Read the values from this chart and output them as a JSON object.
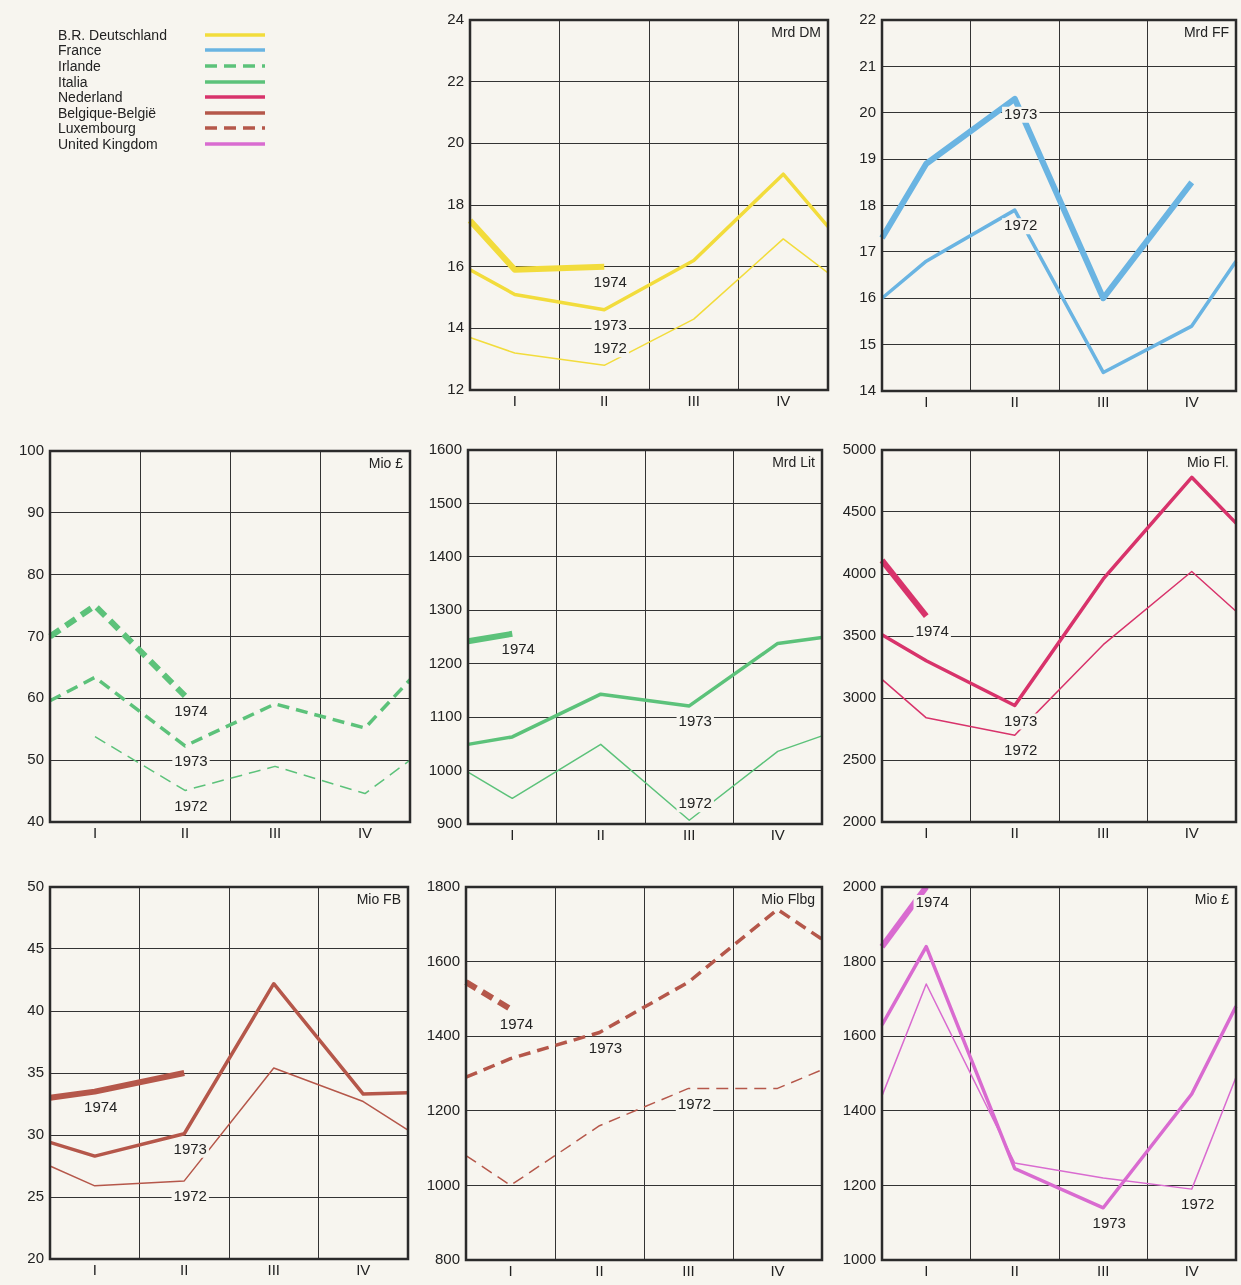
{
  "chart_data": [
    {
      "type": "line",
      "legend_title": "B.R. Deutschland",
      "ylabel": "Mrd DM",
      "categories": [
        null,
        "I",
        null,
        "II",
        null,
        "III",
        null,
        "IV",
        null
      ],
      "ylim": [
        12,
        24
      ],
      "yticks": [
        12,
        14,
        16,
        18,
        20,
        22,
        24
      ],
      "grid": true,
      "line_style": "solid",
      "series": [
        {
          "color": "#f2dc3c",
          "values": [
            13.7,
            13.2,
            null,
            12.8,
            null,
            14.3,
            null,
            16.9,
            15.8
          ]
        },
        {
          "color": "#f2dc3c",
          "values": [
            15.9,
            15.1,
            null,
            14.6,
            null,
            16.2,
            null,
            19.0,
            17.3
          ]
        },
        {
          "color": "#f2dc3c",
          "values": [
            17.5,
            15.9,
            null,
            16.0,
            null,
            null,
            null,
            null,
            null
          ]
        }
      ],
      "annotations": [
        {
          "text": "1974",
          "x": "II",
          "y": 16.0
        },
        {
          "text": "1973",
          "x": "II",
          "y": 14.6
        },
        {
          "text": "1972",
          "x": "II",
          "y": 12.8
        }
      ]
    },
    {
      "type": "line",
      "legend_title": "France",
      "ylabel": "Mrd FF",
      "categories": [
        null,
        "I",
        null,
        "II",
        null,
        "III",
        null,
        "IV",
        null
      ],
      "ylim": [
        14,
        22
      ],
      "yticks": [
        14,
        15,
        16,
        17,
        18,
        19,
        20,
        21,
        22
      ],
      "grid": true,
      "line_style": "solid",
      "series": [
        {
          "color": "#6ab4e2",
          "values": [
            16.0,
            16.8,
            null,
            17.9,
            null,
            14.4,
            null,
            15.4,
            16.8
          ]
        },
        {
          "color": "#6ab4e2",
          "values": [
            17.3,
            18.9,
            null,
            20.3,
            null,
            16.0,
            null,
            18.5,
            null
          ]
        }
      ],
      "annotations": [
        {
          "text": "1973",
          "x": "II",
          "y": 20.3
        },
        {
          "text": "1972",
          "x": "II",
          "y": 17.9
        }
      ]
    },
    {
      "type": "line",
      "legend_title": "Irlande",
      "ylabel": "Mio £",
      "categories": [
        null,
        "I",
        null,
        "II",
        null,
        "III",
        null,
        "IV",
        null
      ],
      "ylim": [
        40,
        100
      ],
      "yticks": [
        40,
        50,
        60,
        70,
        80,
        90,
        100
      ],
      "grid": true,
      "line_style": "dashed",
      "series": [
        {
          "color": "#5cc27a",
          "values": [
            null,
            53.8,
            null,
            45.1,
            null,
            49,
            null,
            44.6,
            50
          ]
        },
        {
          "color": "#5cc27a",
          "values": [
            59.6,
            63.4,
            null,
            52.3,
            null,
            59.1,
            null,
            55.2,
            63
          ]
        },
        {
          "color": "#5cc27a",
          "values": [
            70,
            75,
            null,
            60.4,
            null,
            null,
            null,
            null,
            null
          ]
        }
      ],
      "annotations": [
        {
          "text": "1974",
          "x": "II",
          "y": 60.4
        },
        {
          "text": "1973",
          "x": "II",
          "y": 52.3
        },
        {
          "text": "1972",
          "x": "II",
          "y": 45.1
        }
      ]
    },
    {
      "type": "line",
      "legend_title": "Italia",
      "ylabel": "Mrd Lit",
      "categories": [
        null,
        "I",
        null,
        "II",
        null,
        "III",
        null,
        "IV",
        null
      ],
      "ylim": [
        900,
        1600
      ],
      "yticks": [
        900,
        1000,
        1100,
        1200,
        1300,
        1400,
        1500,
        1600
      ],
      "grid": true,
      "line_style": "solid",
      "series": [
        {
          "color": "#5cc27a",
          "values": [
            997,
            948,
            null,
            1049,
            null,
            907,
            null,
            1036,
            1065
          ]
        },
        {
          "color": "#5cc27a",
          "values": [
            1049,
            1063,
            null,
            1143,
            null,
            1121,
            null,
            1238,
            1249
          ]
        },
        {
          "color": "#5cc27a",
          "values": [
            1242,
            1256,
            null,
            null,
            null,
            null,
            null,
            null,
            null
          ]
        }
      ],
      "annotations": [
        {
          "text": "1974",
          "x": "I",
          "y": 1256
        },
        {
          "text": "1973",
          "x": "III",
          "y": 1121
        },
        {
          "text": "1972",
          "x": "III",
          "y": 907
        }
      ]
    },
    {
      "type": "line",
      "legend_title": "Nederland",
      "ylabel": "Mio Fl.",
      "categories": [
        null,
        "I",
        null,
        "II",
        null,
        "III",
        null,
        "IV",
        null
      ],
      "ylim": [
        2000,
        5000
      ],
      "yticks": [
        2000,
        2500,
        3000,
        3500,
        4000,
        4500,
        5000
      ],
      "grid": true,
      "line_style": "solid",
      "series": [
        {
          "color": "#d8336b",
          "values": [
            3150,
            2840,
            null,
            2700,
            null,
            3430,
            null,
            4020,
            3700
          ]
        },
        {
          "color": "#d8336b",
          "values": [
            3510,
            3300,
            null,
            2940,
            null,
            3960,
            null,
            4780,
            4410
          ]
        },
        {
          "color": "#d8336b",
          "values": [
            4110,
            3660,
            null,
            null,
            null,
            null,
            null,
            null,
            null
          ]
        }
      ],
      "annotations": [
        {
          "text": "1974",
          "x": "I",
          "y": 3660
        },
        {
          "text": "1973",
          "x": "II",
          "y": 2940
        },
        {
          "text": "1972",
          "x": "II",
          "y": 2700
        }
      ]
    },
    {
      "type": "line",
      "legend_title": "Belgique-België",
      "ylabel": "Mio FB",
      "categories": [
        null,
        "I",
        null,
        "II",
        null,
        "III",
        null,
        "IV",
        null
      ],
      "ylim": [
        20,
        50
      ],
      "yticks": [
        20,
        25,
        30,
        35,
        40,
        45,
        50
      ],
      "grid": true,
      "line_style": "solid",
      "series": [
        {
          "color": "#b5574a",
          "values": [
            27.5,
            25.9,
            null,
            26.3,
            null,
            35.4,
            null,
            32.7,
            30.4
          ]
        },
        {
          "color": "#b5574a",
          "values": [
            29.4,
            28.3,
            null,
            30.1,
            null,
            42.2,
            null,
            33.3,
            33.4
          ]
        },
        {
          "color": "#b5574a",
          "values": [
            33.0,
            33.5,
            null,
            35.0,
            null,
            null,
            null,
            null,
            null
          ]
        }
      ],
      "annotations": [
        {
          "text": "1974",
          "x": "I",
          "y": 33.5
        },
        {
          "text": "1973",
          "x": "II",
          "y": 30.1
        },
        {
          "text": "1972",
          "x": "II",
          "y": 26.3
        }
      ]
    },
    {
      "type": "line",
      "legend_title": "Luxembourg",
      "ylabel": "Mio Flbg",
      "categories": [
        null,
        "I",
        null,
        "II",
        null,
        "III",
        null,
        "IV",
        null
      ],
      "ylim": [
        800,
        1800
      ],
      "yticks": [
        800,
        1000,
        1200,
        1400,
        1600,
        1800
      ],
      "grid": true,
      "line_style": "dashed",
      "series": [
        {
          "color": "#b5574a",
          "values": [
            1080,
            1000,
            null,
            1160,
            null,
            1260,
            null,
            1260,
            1310
          ]
        },
        {
          "color": "#b5574a",
          "values": [
            1290,
            1340,
            null,
            1410,
            null,
            1545,
            null,
            1740,
            1660
          ]
        },
        {
          "color": "#b5574a",
          "values": [
            1545,
            1473,
            null,
            null,
            null,
            null,
            null,
            null,
            null
          ]
        }
      ],
      "annotations": [
        {
          "text": "1974",
          "x": "I",
          "y": 1473
        },
        {
          "text": "1973",
          "x": "II",
          "y": 1410
        },
        {
          "text": "1972",
          "x": "III",
          "y": 1260
        }
      ]
    },
    {
      "type": "line",
      "legend_title": "United Kingdom",
      "ylabel": "Mio £",
      "categories": [
        null,
        "I",
        null,
        "II",
        null,
        "III",
        null,
        "IV",
        null
      ],
      "ylim": [
        1000,
        2000
      ],
      "yticks": [
        1000,
        1200,
        1400,
        1600,
        1800,
        2000
      ],
      "grid": true,
      "line_style": "solid",
      "series": [
        {
          "color": "#d96bd0",
          "values": [
            1440,
            1740,
            null,
            1260,
            null,
            1220,
            null,
            1190,
            1490
          ]
        },
        {
          "color": "#d96bd0",
          "values": [
            1630,
            1840,
            null,
            1245,
            null,
            1140,
            null,
            1445,
            1680
          ]
        },
        {
          "color": "#d96bd0",
          "values": [
            1840,
            2000,
            null,
            null,
            null,
            null,
            null,
            null,
            null
          ]
        }
      ],
      "annotations": [
        {
          "text": "1974",
          "x": "I",
          "y": 2000
        },
        {
          "text": "1973",
          "x": "III",
          "y": 1140
        },
        {
          "text": "1972",
          "x": "IV",
          "y": 1190
        }
      ]
    }
  ]
}
